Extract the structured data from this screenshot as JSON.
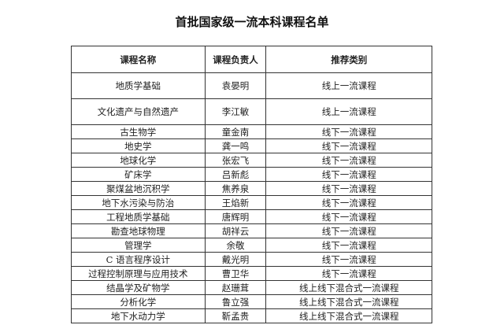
{
  "title": "首批国家级一流本科课程名单",
  "headers": [
    "课程名称",
    "课程负责人",
    "推荐类别"
  ],
  "rows": [
    [
      "地质学基础",
      "袁晏明",
      "线上一流课程"
    ],
    [
      "文化遗产与自然遗产",
      "李江敏",
      "线上一流课程"
    ],
    [
      "古生物学",
      "童金南",
      "线下一流课程"
    ],
    [
      "地史学",
      "龚一鸣",
      "线下一流课程"
    ],
    [
      "地球化学",
      "张宏飞",
      "线下一流课程"
    ],
    [
      "矿床学",
      "吕新彪",
      "线下一流课程"
    ],
    [
      "聚煤盆地沉积学",
      "焦养泉",
      "线下一流课程"
    ],
    [
      "地下水污染与防治",
      "王焰新",
      "线下一流课程"
    ],
    [
      "工程地质学基础",
      "唐辉明",
      "线下一流课程"
    ],
    [
      "勘查地球物理",
      "胡祥云",
      "线下一流课程"
    ],
    [
      "管理学",
      "余敬",
      "线下一流课程"
    ],
    [
      "C 语言程序设计",
      "戴光明",
      "线下一流课程"
    ],
    [
      "过程控制原理与应用技术",
      "曹卫华",
      "线下一流课程"
    ],
    [
      "结晶学及矿物学",
      "赵珊茸",
      "线上线下混合式一流课程"
    ],
    [
      "分析化学",
      "鲁立强",
      "线上线下混合式一流课程"
    ],
    [
      "地下水动力学",
      "靳孟贵",
      "线上线下混合式一流课程"
    ]
  ]
}
